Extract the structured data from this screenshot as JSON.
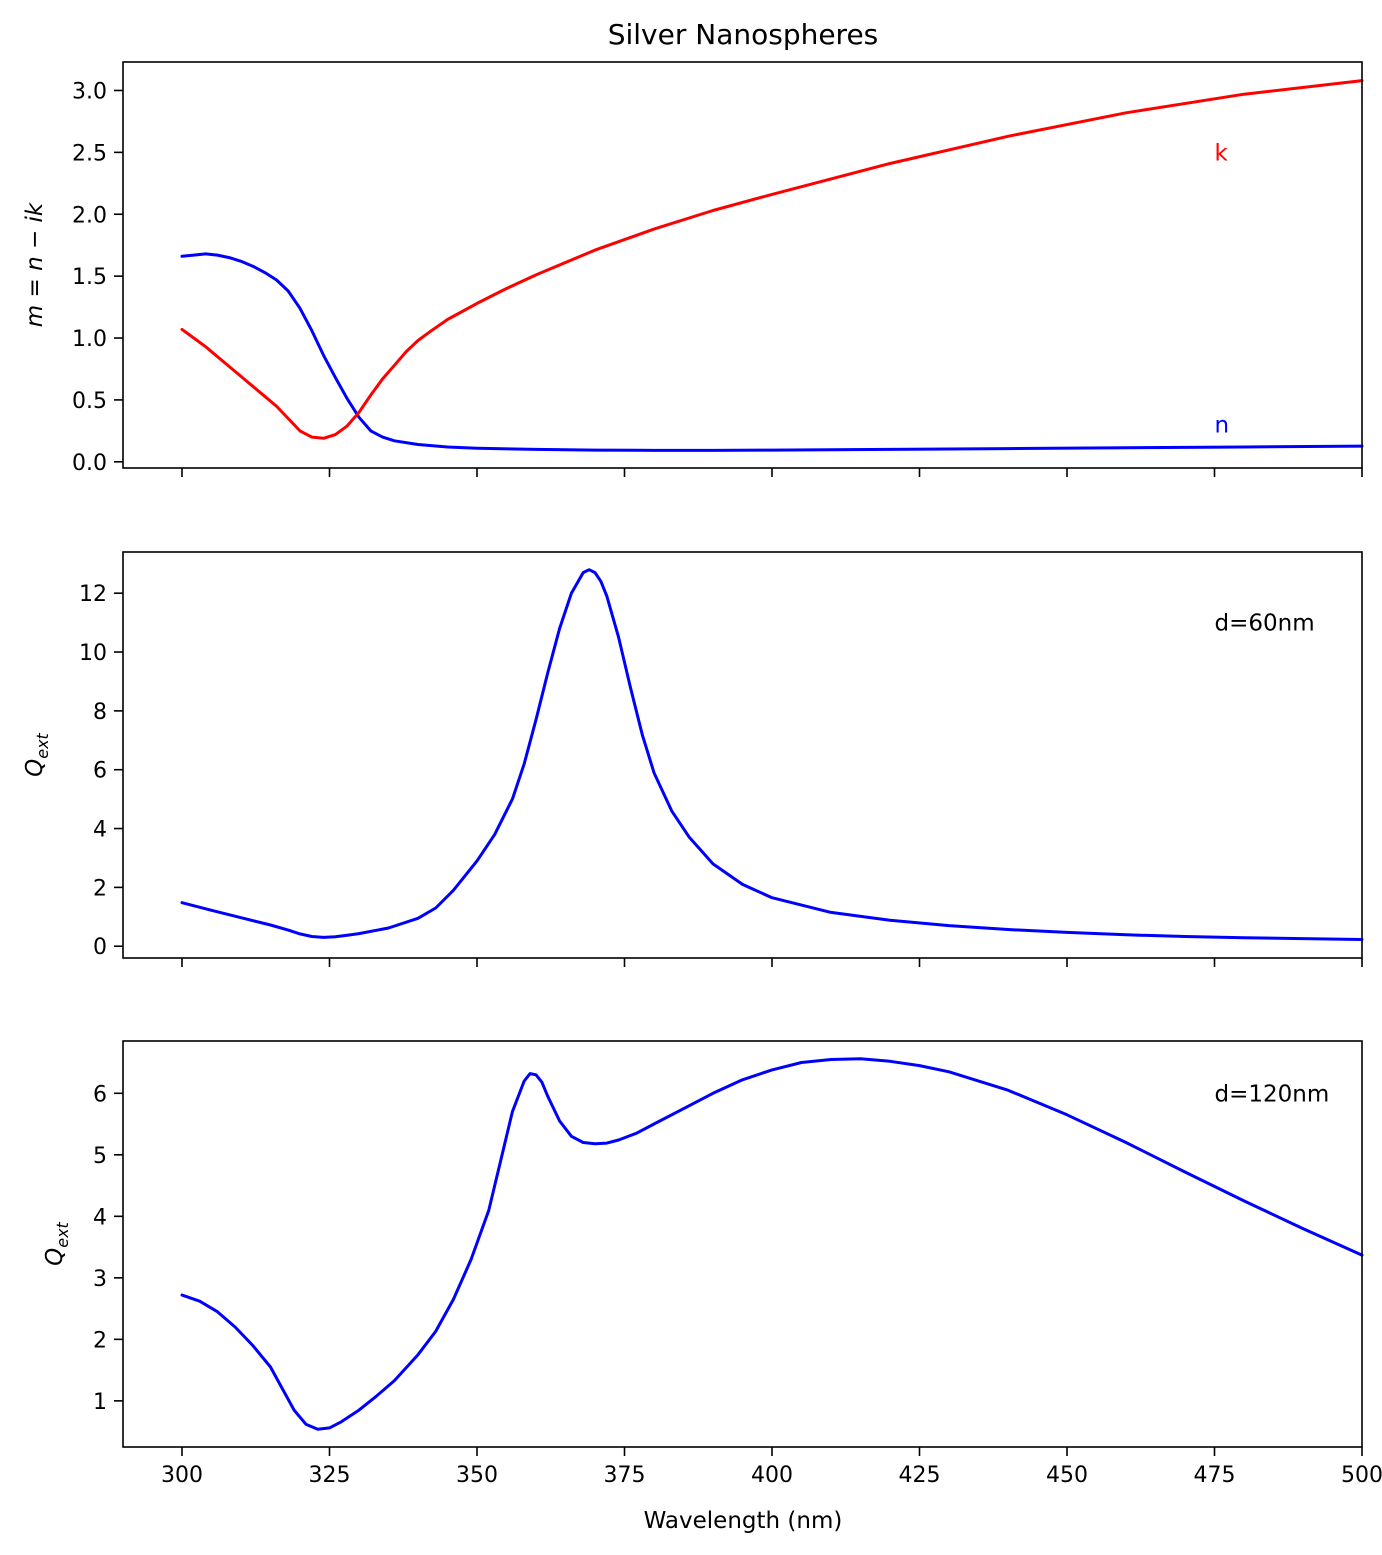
{
  "chart_data": [
    {
      "type": "line",
      "title": "Silver Nanospheres",
      "xlabel": "",
      "ylabel": "m = n − ik",
      "xlim": [
        290,
        500
      ],
      "ylim": [
        -0.05,
        3.23
      ],
      "xticks": [
        300,
        325,
        350,
        375,
        400,
        425,
        450,
        475,
        500
      ],
      "yticks": [
        0.0,
        0.5,
        1.0,
        1.5,
        2.0,
        2.5,
        3.0
      ],
      "ytick_labels": [
        "0.0",
        "0.5",
        "1.0",
        "1.5",
        "2.0",
        "2.5",
        "3.0"
      ],
      "grid": false,
      "annotations": [
        {
          "text": "k",
          "x": 475,
          "y": 2.5,
          "color": "#ff0000"
        },
        {
          "text": "n",
          "x": 475,
          "y": 0.3,
          "color": "#0000ff"
        }
      ],
      "series": [
        {
          "color": "#0000ff",
          "x": [
            300,
            302,
            304,
            306,
            308,
            310,
            312,
            314,
            316,
            318,
            320,
            322,
            324,
            326,
            328,
            330,
            332,
            334,
            336,
            340,
            345,
            350,
            360,
            370,
            380,
            390,
            400,
            420,
            440,
            460,
            480,
            500
          ],
          "y": [
            1.66,
            1.67,
            1.68,
            1.67,
            1.65,
            1.62,
            1.58,
            1.53,
            1.47,
            1.38,
            1.24,
            1.06,
            0.86,
            0.68,
            0.51,
            0.36,
            0.25,
            0.2,
            0.17,
            0.14,
            0.12,
            0.11,
            0.1,
            0.095,
            0.092,
            0.092,
            0.095,
            0.1,
            0.107,
            0.113,
            0.12,
            0.127
          ]
        },
        {
          "color": "#ff0000",
          "x": [
            300,
            302,
            304,
            306,
            308,
            310,
            312,
            314,
            316,
            318,
            320,
            322,
            324,
            326,
            328,
            330,
            332,
            334,
            336,
            338,
            340,
            342,
            345,
            350,
            355,
            360,
            370,
            380,
            390,
            400,
            420,
            440,
            460,
            480,
            500
          ],
          "y": [
            1.07,
            1.0,
            0.93,
            0.85,
            0.77,
            0.69,
            0.61,
            0.53,
            0.45,
            0.35,
            0.25,
            0.2,
            0.19,
            0.22,
            0.29,
            0.4,
            0.54,
            0.67,
            0.78,
            0.89,
            0.98,
            1.05,
            1.15,
            1.28,
            1.4,
            1.51,
            1.71,
            1.88,
            2.03,
            2.16,
            2.41,
            2.63,
            2.82,
            2.97,
            3.08
          ]
        }
      ]
    },
    {
      "type": "line",
      "title": "",
      "xlabel": "",
      "ylabel": "Q_ext",
      "xlim": [
        290,
        500
      ],
      "ylim": [
        -0.4,
        13.4
      ],
      "xticks": [
        300,
        325,
        350,
        375,
        400,
        425,
        450,
        475,
        500
      ],
      "yticks": [
        0,
        2,
        4,
        6,
        8,
        10,
        12
      ],
      "ytick_labels": [
        "0",
        "2",
        "4",
        "6",
        "8",
        "10",
        "12"
      ],
      "grid": false,
      "annotations": [
        {
          "text": "d=60nm",
          "x": 475,
          "y": 11.0,
          "color": "#000000"
        }
      ],
      "series": [
        {
          "color": "#0000ff",
          "x": [
            300,
            305,
            310,
            315,
            318,
            320,
            322,
            324,
            326,
            328,
            330,
            335,
            340,
            343,
            346,
            350,
            353,
            356,
            358,
            360,
            362,
            364,
            366,
            368,
            369,
            370,
            371,
            372,
            374,
            376,
            378,
            380,
            383,
            386,
            390,
            395,
            400,
            410,
            420,
            430,
            440,
            450,
            460,
            470,
            480,
            490,
            500
          ],
          "y": [
            1.48,
            1.22,
            0.97,
            0.72,
            0.55,
            0.42,
            0.33,
            0.3,
            0.32,
            0.37,
            0.43,
            0.62,
            0.95,
            1.3,
            1.9,
            2.9,
            3.8,
            5.0,
            6.2,
            7.7,
            9.3,
            10.8,
            12.0,
            12.7,
            12.8,
            12.7,
            12.4,
            11.9,
            10.5,
            8.8,
            7.2,
            5.9,
            4.6,
            3.7,
            2.8,
            2.1,
            1.65,
            1.15,
            0.88,
            0.7,
            0.57,
            0.47,
            0.39,
            0.33,
            0.29,
            0.26,
            0.23
          ]
        }
      ]
    },
    {
      "type": "line",
      "title": "",
      "xlabel": "Wavelength (nm)",
      "ylabel": "Q_ext",
      "xlim": [
        290,
        500
      ],
      "ylim": [
        0.25,
        6.85
      ],
      "xticks": [
        300,
        325,
        350,
        375,
        400,
        425,
        450,
        475,
        500
      ],
      "xtick_labels": [
        "300",
        "325",
        "350",
        "375",
        "400",
        "425",
        "450",
        "475",
        "500"
      ],
      "yticks": [
        1,
        2,
        3,
        4,
        5,
        6
      ],
      "ytick_labels": [
        "1",
        "2",
        "3",
        "4",
        "5",
        "6"
      ],
      "grid": false,
      "annotations": [
        {
          "text": "d=120nm",
          "x": 475,
          "y": 6.0,
          "color": "#000000"
        }
      ],
      "series": [
        {
          "color": "#0000ff",
          "x": [
            300,
            303,
            306,
            309,
            312,
            315,
            317,
            319,
            321,
            323,
            325,
            327,
            330,
            333,
            336,
            340,
            343,
            346,
            349,
            352,
            354,
            356,
            358,
            359,
            360,
            361,
            362,
            364,
            366,
            368,
            370,
            372,
            374,
            377,
            380,
            385,
            390,
            395,
            400,
            405,
            410,
            415,
            420,
            425,
            430,
            440,
            450,
            460,
            470,
            480,
            490,
            500
          ],
          "y": [
            2.72,
            2.62,
            2.45,
            2.2,
            1.9,
            1.55,
            1.2,
            0.85,
            0.62,
            0.54,
            0.56,
            0.66,
            0.85,
            1.08,
            1.33,
            1.75,
            2.13,
            2.65,
            3.3,
            4.1,
            4.9,
            5.7,
            6.2,
            6.32,
            6.3,
            6.18,
            5.95,
            5.55,
            5.3,
            5.2,
            5.18,
            5.19,
            5.24,
            5.35,
            5.5,
            5.75,
            6.0,
            6.22,
            6.38,
            6.5,
            6.55,
            6.56,
            6.52,
            6.45,
            6.35,
            6.05,
            5.65,
            5.2,
            4.72,
            4.25,
            3.8,
            3.37
          ]
        }
      ]
    }
  ]
}
